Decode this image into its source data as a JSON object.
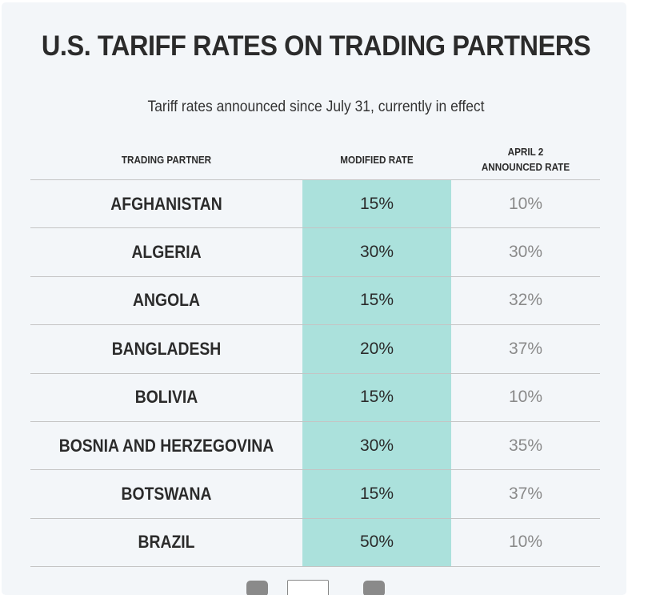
{
  "title": "U.S. TARIFF RATES ON TRADING PARTNERS",
  "subtitle": "Tariff rates announced since July 31, currently in effect",
  "colors": {
    "highlight_column": "#abe1dc",
    "card_background": "#f3f6f9",
    "muted_text": "#8a8a8a"
  },
  "columns": {
    "partner": "TRADING PARTNER",
    "modified": "MODIFIED RATE",
    "april_line1": "APRIL 2",
    "april_line2": "ANNOUNCED RATE"
  },
  "rows": [
    {
      "partner": "AFGHANISTAN",
      "modified": "15%",
      "april": "10%"
    },
    {
      "partner": "ALGERIA",
      "modified": "30%",
      "april": "30%"
    },
    {
      "partner": "ANGOLA",
      "modified": "15%",
      "april": "32%"
    },
    {
      "partner": "BANGLADESH",
      "modified": "20%",
      "april": "37%"
    },
    {
      "partner": "BOLIVIA",
      "modified": "15%",
      "april": "10%"
    },
    {
      "partner": "BOSNIA AND HERZEGOVINA",
      "modified": "30%",
      "april": "35%"
    },
    {
      "partner": "BOTSWANA",
      "modified": "15%",
      "april": "37%"
    },
    {
      "partner": "BRAZIL",
      "modified": "50%",
      "april": "10%"
    }
  ],
  "pagination": {
    "prev_icon": "chevron-left-icon",
    "next_icon": "chevron-right-icon",
    "page_input_value": ""
  }
}
